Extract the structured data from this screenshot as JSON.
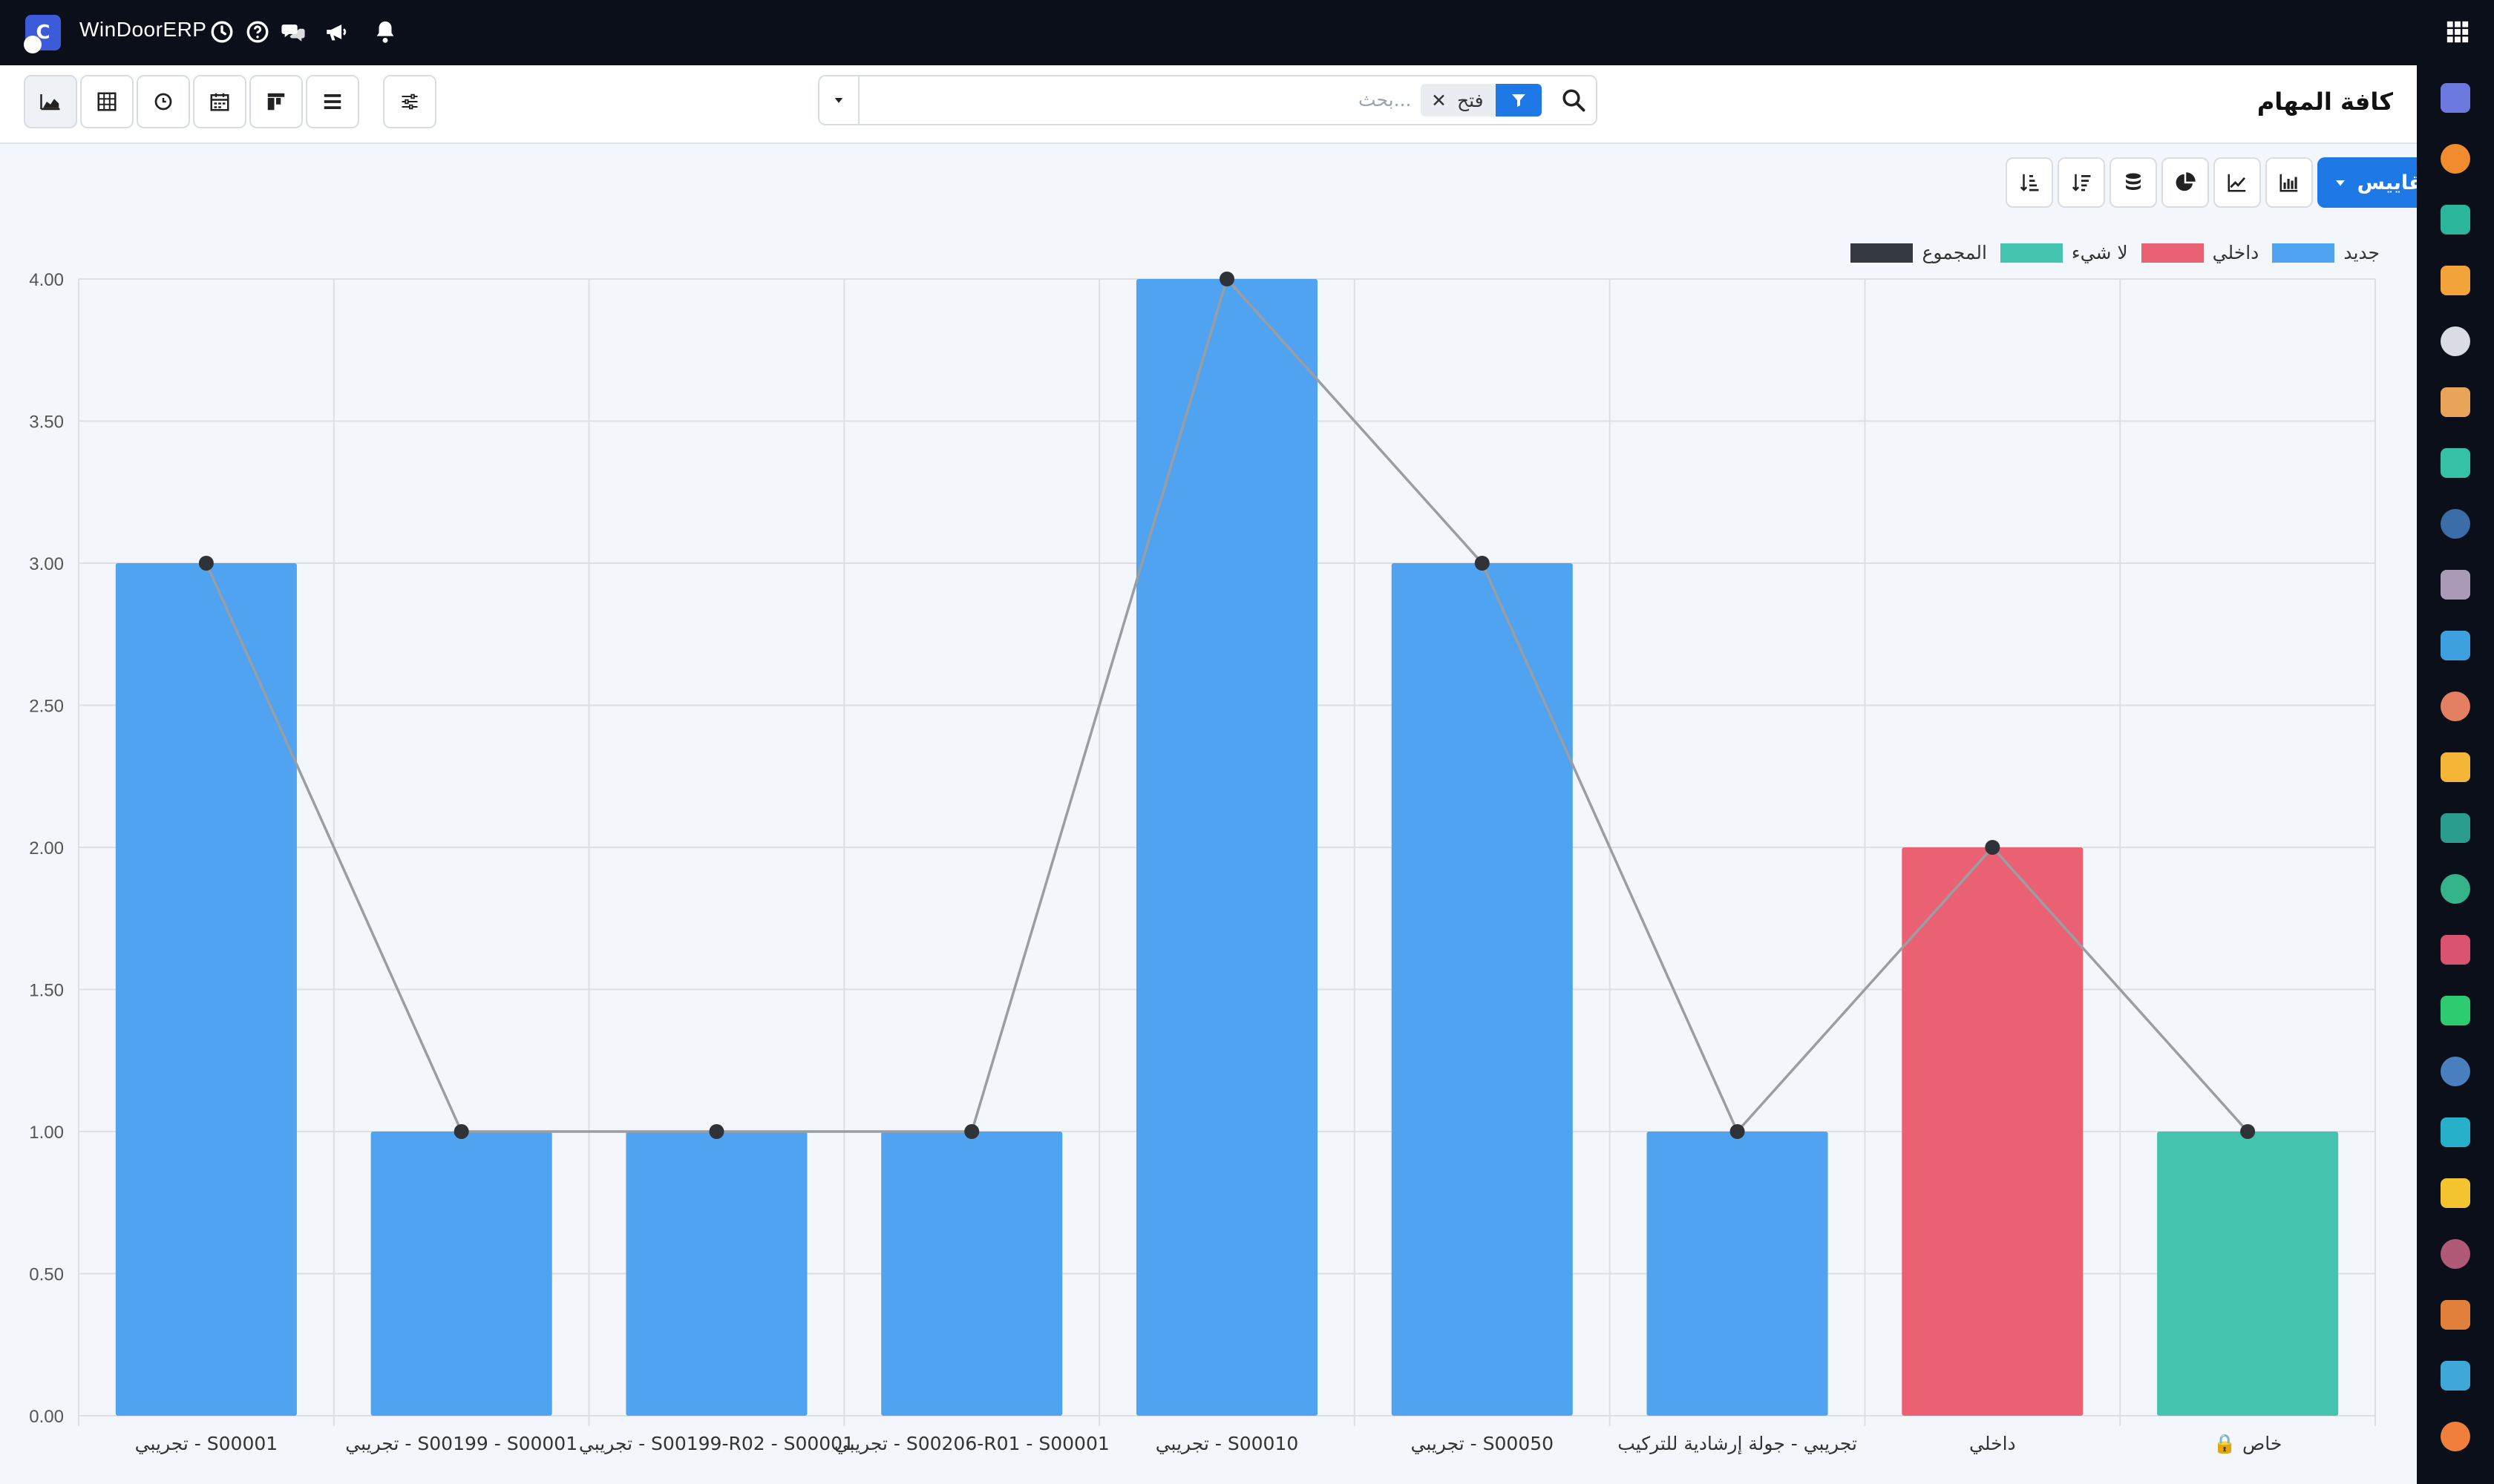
{
  "navbar": {
    "app_name": "WinDoorERP",
    "logo_letter": "C",
    "icons": [
      "clock-icon",
      "help-icon",
      "chat-icon",
      "megaphone-icon",
      "bell-icon",
      "apps-grid-icon"
    ]
  },
  "control_panel": {
    "title": "كافة المهام",
    "search": {
      "placeholder": "بحث...",
      "facet": "فتح"
    },
    "views": [
      "graph-view",
      "pivot-view",
      "activity-view",
      "calendar-view",
      "kanban-view",
      "list-view"
    ]
  },
  "chart_toolbar": {
    "measures_label": "المقاييس",
    "buttons": [
      "bar-chart-icon",
      "line-chart-icon",
      "pie-chart-icon",
      "stacked-icon",
      "sort-descending-icon",
      "sort-ascending-icon"
    ]
  },
  "chart_data": {
    "type": "bar",
    "categories": [
      "تجريبي - S00001",
      "تجريبي - S00199 - S00001",
      "تجريبي - S00199-R02 - S00001",
      "تجريبي - S00206-R01 - S00001",
      "تجريبي - S00010",
      "تجريبي - S00050",
      "تجريبي - جولة إرشادية للتركيب",
      "داخلي",
      "🔒 خاص"
    ],
    "values": [
      3,
      1,
      1,
      1,
      4,
      3,
      1,
      2,
      1
    ],
    "bar_series": [
      "جديد",
      "جديد",
      "جديد",
      "جديد",
      "جديد",
      "جديد",
      "جديد",
      "داخلي",
      "لا شيء"
    ],
    "series": [
      {
        "name": "جديد",
        "color": "#4fa3f0"
      },
      {
        "name": "داخلي",
        "color": "#eb6174"
      },
      {
        "name": "لا شيء",
        "color": "#44c4ae"
      },
      {
        "name": "المجموع",
        "color": "#343a40"
      }
    ],
    "total_line": [
      3,
      1,
      1,
      1,
      4,
      3,
      1,
      2,
      1
    ],
    "yticks": [
      "0.00",
      "0.50",
      "1.00",
      "1.50",
      "2.00",
      "2.50",
      "3.00",
      "3.50",
      "4.00"
    ],
    "ylim": [
      0,
      4
    ],
    "grid": true,
    "legend_position": "top-right"
  },
  "sidebar_apps": [
    {
      "name": "mail-app-icon",
      "color": "#6c7ae0"
    },
    {
      "name": "discuss-app-icon",
      "color": "#f08c2e"
    },
    {
      "name": "inventory-app-icon",
      "color": "#2bb59b"
    },
    {
      "name": "reports-app-icon",
      "color": "#f2a33a"
    },
    {
      "name": "product-app-icon",
      "color": "#d9dde3"
    },
    {
      "name": "contacts-app-icon",
      "color": "#e9a45a"
    },
    {
      "name": "tasks-app-icon",
      "color": "#35c1a6"
    },
    {
      "name": "knowledge-app-icon",
      "color": "#3b6ea8"
    },
    {
      "name": "packages-app-icon",
      "color": "#a99bb8"
    },
    {
      "name": "invoicing-app-icon",
      "color": "#3fa0e0"
    },
    {
      "name": "employees-app-icon",
      "color": "#e57f62"
    },
    {
      "name": "calendar-app-icon",
      "color": "#f5b638"
    },
    {
      "name": "sign-app-icon",
      "color": "#2a9d8f"
    },
    {
      "name": "crm-app-icon",
      "color": "#35b38b"
    },
    {
      "name": "dashboard-app-icon",
      "color": "#d95370"
    },
    {
      "name": "whatsapp-app-icon",
      "color": "#2ecc71"
    },
    {
      "name": "planning-app-icon",
      "color": "#4a7fbf"
    },
    {
      "name": "website-app-icon",
      "color": "#26b0c9"
    },
    {
      "name": "telegram-app-icon",
      "color": "#f4c430"
    },
    {
      "name": "payments-app-icon",
      "color": "#b05a78"
    },
    {
      "name": "inventory2-app-icon",
      "color": "#e0803b"
    },
    {
      "name": "stats-app-icon",
      "color": "#3fa8d8"
    },
    {
      "name": "modules-app-icon",
      "color": "#f07f3c"
    }
  ]
}
